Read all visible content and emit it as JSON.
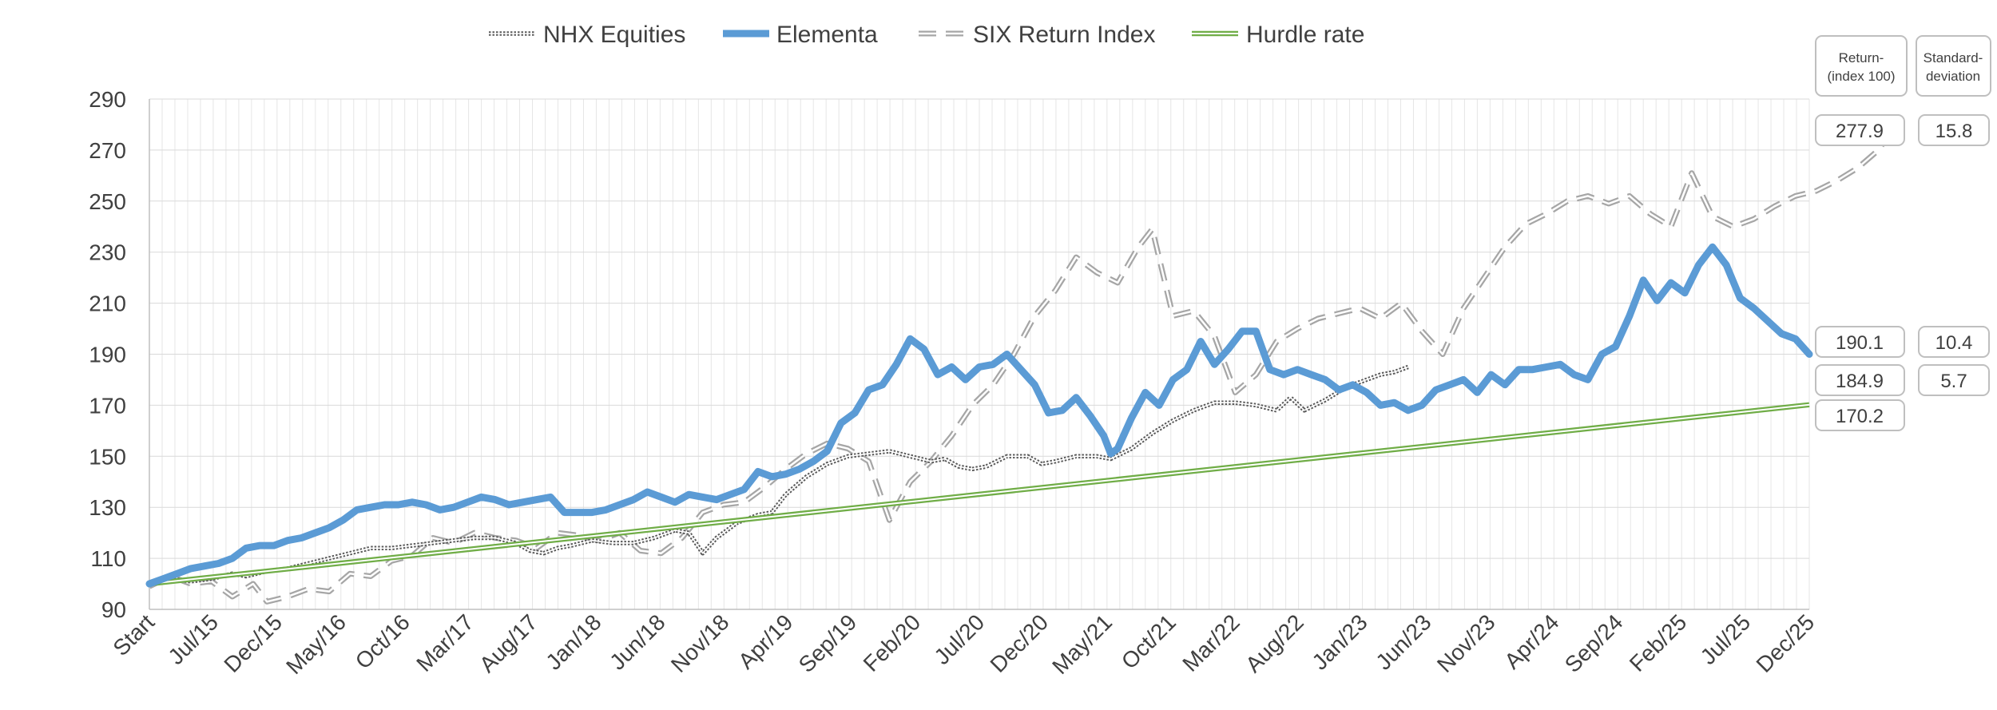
{
  "chart_data": {
    "type": "line",
    "title": "",
    "xlabel": "",
    "ylabel": "",
    "ylim": [
      90,
      290
    ],
    "yticks": [
      90,
      110,
      130,
      150,
      170,
      190,
      210,
      230,
      250,
      270,
      290
    ],
    "grid": true,
    "legend_position": "top-center",
    "x_tick_labels": [
      "Start",
      "Jul/15",
      "Dec/15",
      "May/16",
      "Oct/16",
      "Mar/17",
      "Aug/17",
      "Jan/18",
      "Jun/18",
      "Nov/18",
      "Apr/19",
      "Sep/19",
      "Feb/20",
      "Jul/20",
      "Dec/20",
      "May/21",
      "Oct/21",
      "Mar/22",
      "Aug/22",
      "Jan/23",
      "Jun/23",
      "Nov/23",
      "Apr/24",
      "Sep/24",
      "Feb/25",
      "Jul/25",
      "Dec/25"
    ],
    "x_months_total": 130,
    "series": [
      {
        "name": "NHX Equities",
        "style": "dotted-double",
        "color": "#595959",
        "points": [
          [
            0,
            100
          ],
          [
            3,
            102
          ],
          [
            6,
            101
          ],
          [
            9,
            102
          ],
          [
            12,
            104
          ],
          [
            14,
            103
          ],
          [
            17,
            105
          ],
          [
            20,
            106
          ],
          [
            23,
            108
          ],
          [
            26,
            110
          ],
          [
            29,
            112
          ],
          [
            32,
            114
          ],
          [
            35,
            114
          ],
          [
            38,
            115
          ],
          [
            41,
            116
          ],
          [
            44,
            117
          ],
          [
            47,
            118
          ],
          [
            50,
            118
          ],
          [
            53,
            116
          ],
          [
            55,
            113
          ],
          [
            57,
            112
          ],
          [
            59,
            114
          ],
          [
            61,
            115
          ],
          [
            64,
            117
          ],
          [
            67,
            116
          ],
          [
            70,
            116
          ],
          [
            73,
            118
          ],
          [
            76,
            121
          ],
          [
            78,
            120
          ],
          [
            80,
            112
          ],
          [
            82,
            118
          ],
          [
            85,
            124
          ],
          [
            88,
            127
          ],
          [
            90,
            128
          ],
          [
            92,
            135
          ],
          [
            95,
            142
          ],
          [
            98,
            147
          ],
          [
            101,
            150
          ],
          [
            104,
            151
          ],
          [
            107,
            152
          ],
          [
            110,
            150
          ],
          [
            113,
            148
          ],
          [
            115,
            149
          ],
          [
            117,
            146
          ],
          [
            119,
            145
          ],
          [
            121,
            146
          ],
          [
            124,
            150
          ],
          [
            127,
            150
          ],
          [
            129,
            147
          ],
          [
            131,
            148
          ],
          [
            134,
            150
          ],
          [
            137,
            150
          ],
          [
            139,
            149
          ],
          [
            142,
            153
          ],
          [
            145,
            159
          ],
          [
            148,
            164
          ],
          [
            151,
            168
          ],
          [
            154,
            171
          ],
          [
            157,
            171
          ],
          [
            160,
            170
          ],
          [
            163,
            168
          ],
          [
            165,
            173
          ],
          [
            167,
            168
          ],
          [
            170,
            172
          ],
          [
            173,
            177
          ],
          [
            176,
            180
          ],
          [
            178,
            182
          ],
          [
            180,
            183
          ],
          [
            182,
            185
          ]
        ]
      },
      {
        "name": "Elementa",
        "style": "thick",
        "color": "#5B9BD5",
        "points": [
          [
            0,
            100
          ],
          [
            2,
            102
          ],
          [
            4,
            104
          ],
          [
            6,
            106
          ],
          [
            8,
            107
          ],
          [
            10,
            108
          ],
          [
            12,
            110
          ],
          [
            14,
            114
          ],
          [
            16,
            115
          ],
          [
            18,
            115
          ],
          [
            20,
            117
          ],
          [
            22,
            118
          ],
          [
            24,
            120
          ],
          [
            26,
            122
          ],
          [
            28,
            125
          ],
          [
            30,
            129
          ],
          [
            32,
            130
          ],
          [
            34,
            131
          ],
          [
            36,
            131
          ],
          [
            38,
            132
          ],
          [
            40,
            131
          ],
          [
            42,
            129
          ],
          [
            44,
            130
          ],
          [
            46,
            132
          ],
          [
            48,
            134
          ],
          [
            50,
            133
          ],
          [
            52,
            131
          ],
          [
            54,
            132
          ],
          [
            56,
            133
          ],
          [
            58,
            134
          ],
          [
            60,
            128
          ],
          [
            62,
            128
          ],
          [
            64,
            128
          ],
          [
            66,
            129
          ],
          [
            68,
            131
          ],
          [
            70,
            133
          ],
          [
            72,
            136
          ],
          [
            74,
            134
          ],
          [
            76,
            132
          ],
          [
            78,
            135
          ],
          [
            80,
            134
          ],
          [
            82,
            133
          ],
          [
            84,
            135
          ],
          [
            86,
            137
          ],
          [
            88,
            144
          ],
          [
            90,
            142
          ],
          [
            92,
            143
          ],
          [
            94,
            145
          ],
          [
            96,
            148
          ],
          [
            98,
            152
          ],
          [
            100,
            163
          ],
          [
            102,
            167
          ],
          [
            104,
            176
          ],
          [
            106,
            178
          ],
          [
            108,
            186
          ],
          [
            110,
            196
          ],
          [
            112,
            192
          ],
          [
            114,
            182
          ],
          [
            116,
            185
          ],
          [
            118,
            180
          ],
          [
            120,
            185
          ],
          [
            122,
            186
          ],
          [
            124,
            190
          ],
          [
            126,
            184
          ],
          [
            128,
            178
          ],
          [
            130,
            167
          ],
          [
            132,
            168
          ],
          [
            134,
            173
          ],
          [
            136,
            166
          ],
          [
            138,
            158
          ],
          [
            139,
            151
          ],
          [
            140,
            153
          ],
          [
            142,
            165
          ],
          [
            144,
            175
          ],
          [
            146,
            170
          ],
          [
            148,
            180
          ],
          [
            150,
            184
          ],
          [
            152,
            195
          ],
          [
            154,
            186
          ],
          [
            156,
            192
          ],
          [
            158,
            199
          ],
          [
            160,
            199
          ],
          [
            162,
            184
          ],
          [
            164,
            182
          ],
          [
            166,
            184
          ],
          [
            168,
            182
          ],
          [
            170,
            180
          ],
          [
            172,
            176
          ],
          [
            174,
            178
          ],
          [
            176,
            175
          ],
          [
            178,
            170
          ],
          [
            180,
            171
          ],
          [
            182,
            168
          ],
          [
            184,
            170
          ],
          [
            186,
            176
          ],
          [
            188,
            178
          ],
          [
            190,
            180
          ],
          [
            192,
            175
          ],
          [
            194,
            182
          ],
          [
            196,
            178
          ],
          [
            198,
            184
          ],
          [
            200,
            184
          ],
          [
            202,
            185
          ],
          [
            204,
            186
          ],
          [
            206,
            182
          ],
          [
            208,
            180
          ],
          [
            210,
            190
          ],
          [
            212,
            193
          ],
          [
            214,
            205
          ],
          [
            216,
            219
          ],
          [
            218,
            211
          ],
          [
            220,
            218
          ],
          [
            222,
            214
          ],
          [
            224,
            225
          ],
          [
            226,
            232
          ],
          [
            228,
            225
          ],
          [
            230,
            212
          ],
          [
            232,
            208
          ],
          [
            234,
            203
          ],
          [
            236,
            198
          ],
          [
            238,
            196
          ],
          [
            240,
            190
          ]
        ]
      },
      {
        "name": "SIX Return Index",
        "style": "dashed-double",
        "color": "#A6A6A6",
        "points": [
          [
            0,
            99
          ],
          [
            3,
            103
          ],
          [
            6,
            100
          ],
          [
            9,
            101
          ],
          [
            12,
            95
          ],
          [
            15,
            100
          ],
          [
            17,
            93
          ],
          [
            20,
            95
          ],
          [
            23,
            98
          ],
          [
            26,
            97
          ],
          [
            29,
            104
          ],
          [
            32,
            103
          ],
          [
            35,
            109
          ],
          [
            38,
            111
          ],
          [
            41,
            118
          ],
          [
            44,
            116
          ],
          [
            47,
            120
          ],
          [
            50,
            118
          ],
          [
            53,
            117
          ],
          [
            56,
            114
          ],
          [
            59,
            120
          ],
          [
            62,
            119
          ],
          [
            65,
            117
          ],
          [
            68,
            120
          ],
          [
            71,
            113
          ],
          [
            74,
            112
          ],
          [
            77,
            118
          ],
          [
            80,
            128
          ],
          [
            83,
            131
          ],
          [
            86,
            132
          ],
          [
            89,
            138
          ],
          [
            92,
            145
          ],
          [
            95,
            151
          ],
          [
            98,
            155
          ],
          [
            101,
            153
          ],
          [
            104,
            148
          ],
          [
            107,
            125
          ],
          [
            110,
            140
          ],
          [
            113,
            148
          ],
          [
            116,
            158
          ],
          [
            119,
            170
          ],
          [
            122,
            178
          ],
          [
            125,
            190
          ],
          [
            128,
            205
          ],
          [
            131,
            215
          ],
          [
            134,
            228
          ],
          [
            137,
            222
          ],
          [
            140,
            218
          ],
          [
            143,
            232
          ],
          [
            145,
            239
          ],
          [
            148,
            205
          ],
          [
            151,
            207
          ],
          [
            154,
            197
          ],
          [
            157,
            175
          ],
          [
            160,
            182
          ],
          [
            163,
            195
          ],
          [
            166,
            200
          ],
          [
            169,
            204
          ],
          [
            172,
            206
          ],
          [
            175,
            208
          ],
          [
            178,
            204
          ],
          [
            181,
            210
          ],
          [
            184,
            199
          ],
          [
            187,
            190
          ],
          [
            190,
            208
          ],
          [
            193,
            220
          ],
          [
            196,
            232
          ],
          [
            199,
            241
          ],
          [
            202,
            245
          ],
          [
            205,
            250
          ],
          [
            208,
            252
          ],
          [
            211,
            249
          ],
          [
            214,
            252
          ],
          [
            217,
            245
          ],
          [
            220,
            240
          ],
          [
            223,
            261
          ],
          [
            226,
            244
          ],
          [
            229,
            240
          ],
          [
            232,
            243
          ],
          [
            235,
            248
          ],
          [
            238,
            252
          ],
          [
            241,
            254
          ],
          [
            244,
            258
          ],
          [
            247,
            263
          ],
          [
            250,
            270
          ],
          [
            252,
            278
          ]
        ]
      },
      {
        "name": "Hurdle rate",
        "style": "double",
        "color": "#70AD47",
        "points": [
          [
            0,
            100
          ],
          [
            240,
            170.2
          ]
        ]
      }
    ],
    "summary_headers": [
      "Return-(index 100)",
      "Standard-deviation"
    ],
    "summary": [
      {
        "series": "SIX Return Index",
        "return": "277.9",
        "std": "15.8"
      },
      {
        "series": "Elementa",
        "return": "190.1",
        "std": "10.4"
      },
      {
        "series": "NHX Equities",
        "return": "184.9",
        "std": "5.7"
      },
      {
        "series": "Hurdle rate",
        "return": "170.2",
        "std": ""
      }
    ]
  }
}
